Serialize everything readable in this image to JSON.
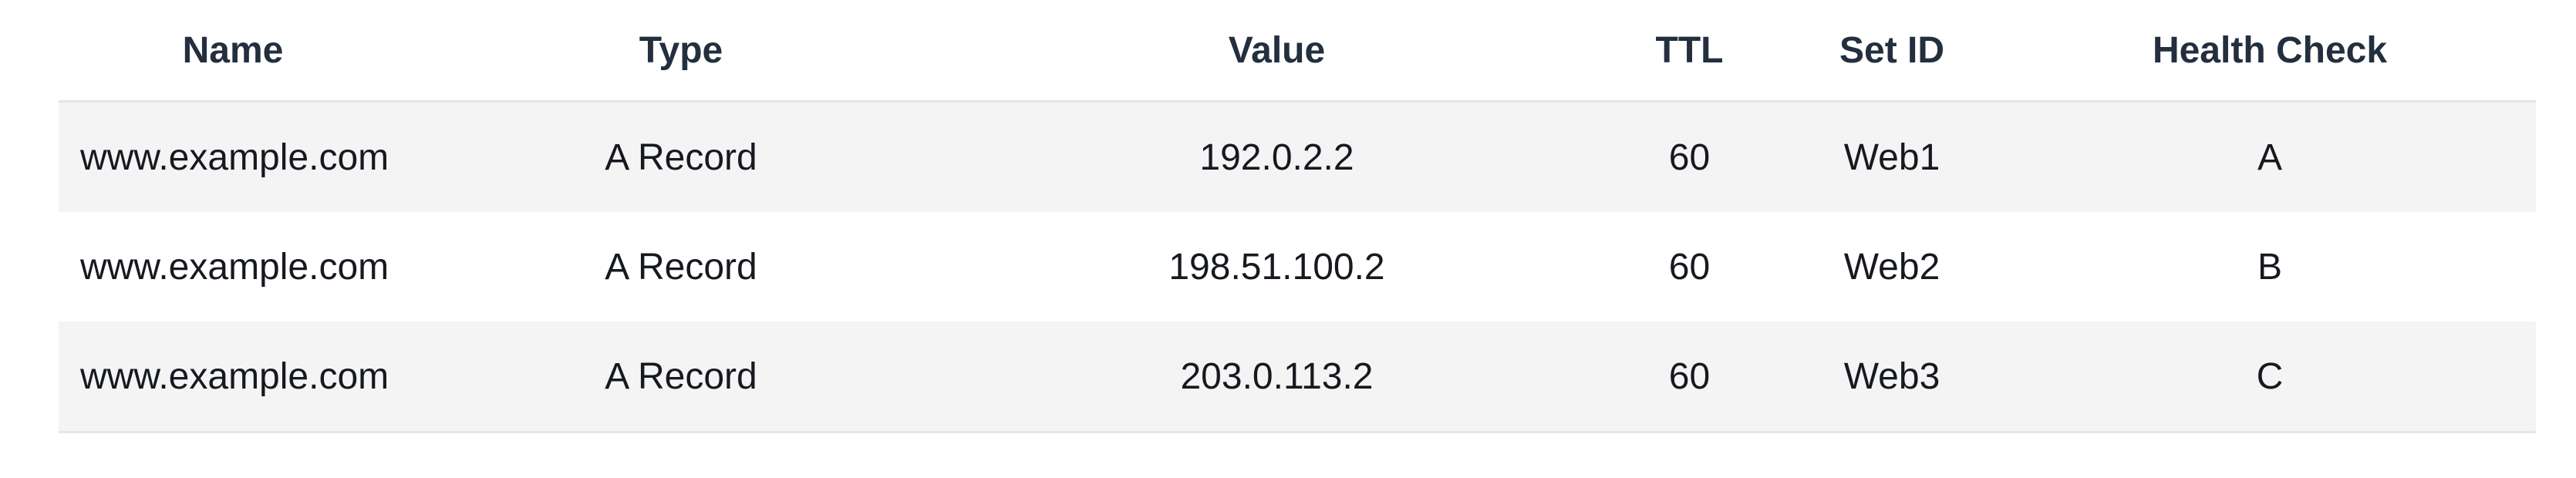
{
  "table": {
    "headers": [
      "Name",
      "Type",
      "Value",
      "TTL",
      "Set ID",
      "Health Check"
    ],
    "rows": [
      [
        "www.example.com",
        "A Record",
        "192.0.2.2",
        "60",
        "Web1",
        "A"
      ],
      [
        "www.example.com",
        "A Record",
        "198.51.100.2",
        "60",
        "Web2",
        "B"
      ],
      [
        "www.example.com",
        "A Record",
        "203.0.113.2",
        "60",
        "Web3",
        "C"
      ]
    ]
  }
}
